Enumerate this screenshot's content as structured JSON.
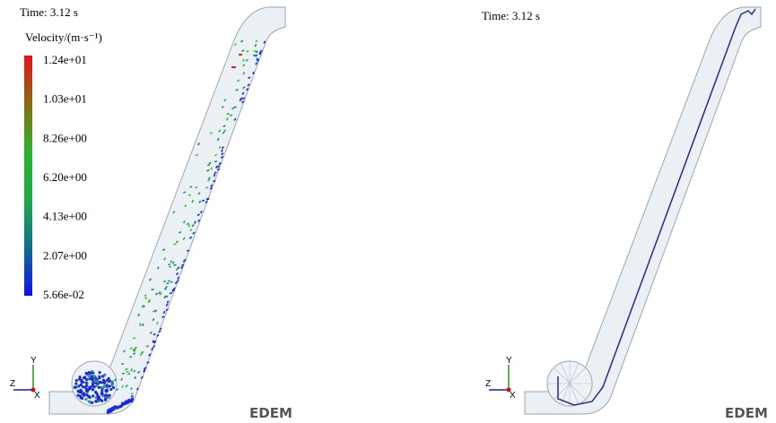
{
  "panels": [
    {
      "time": "Time: 3.12 s",
      "colorbar": {
        "title": "Velocity/(m·s⁻¹)",
        "labels": [
          "1.24e+01",
          "1.03e+01",
          "8.26e+00",
          "6.20e+00",
          "4.13e+00",
          "2.07e+00",
          "5.66e-02"
        ]
      },
      "axes": [
        "Y",
        "Z",
        "X"
      ],
      "logo": "EDEM"
    },
    {
      "time": "Time: 3.12 s",
      "axes": [
        "Y",
        "Z",
        "X"
      ],
      "logo": "EDEM"
    }
  ]
}
